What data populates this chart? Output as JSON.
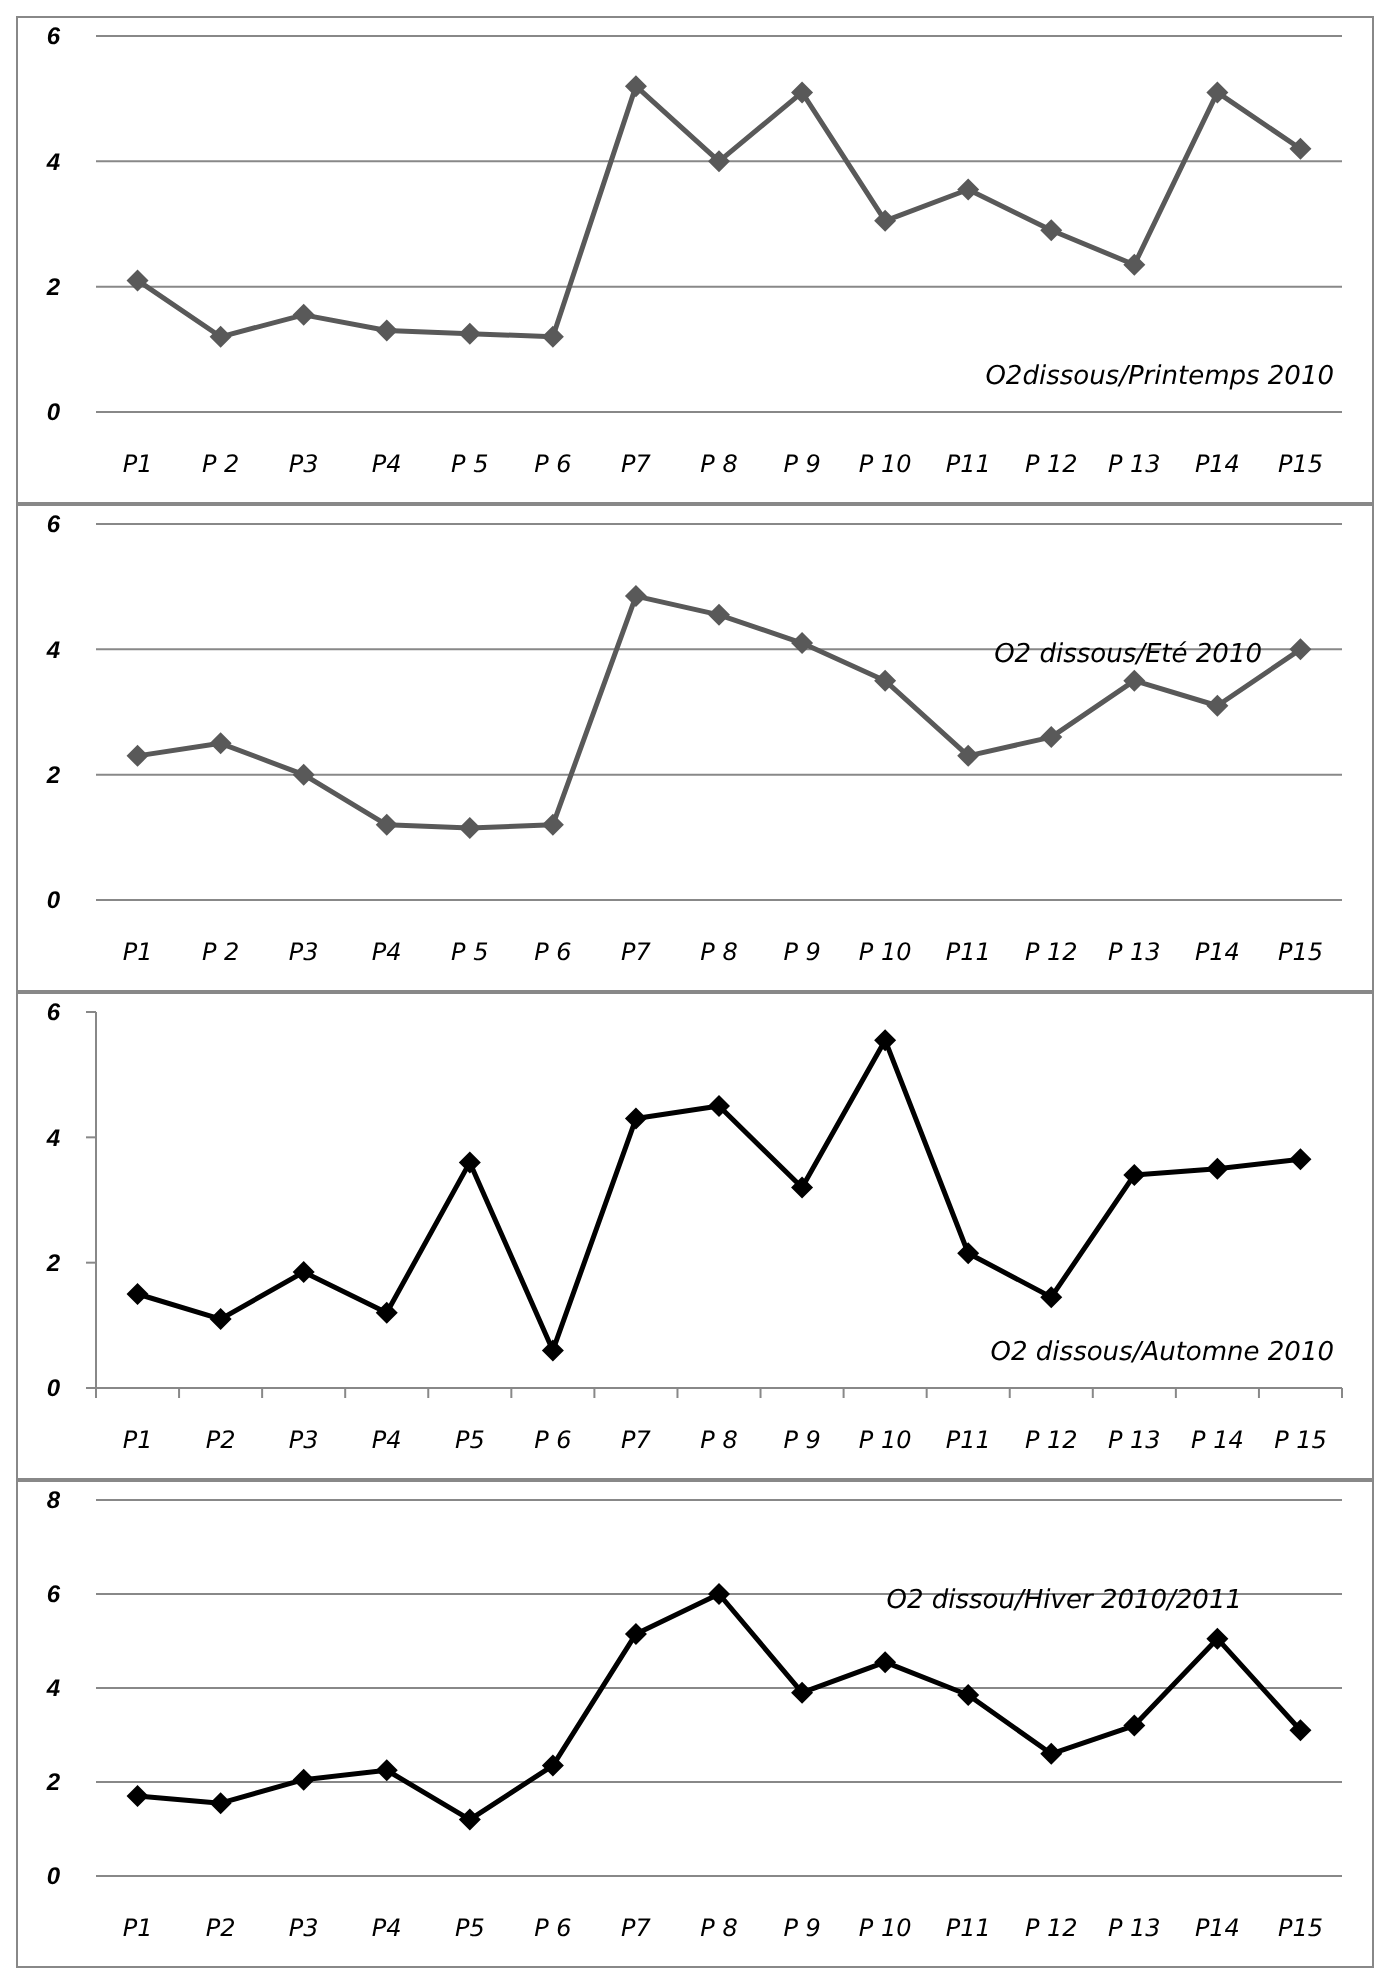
{
  "chart_data": [
    {
      "type": "line",
      "title": "O2dissous/Printemps 2010",
      "categories": [
        "P1",
        "P 2",
        "P3",
        "P4",
        "P 5",
        "P 6",
        "P7",
        "P 8",
        "P 9",
        "P 10",
        "P11",
        "P 12",
        "P 13",
        "P14",
        "P15"
      ],
      "series": [
        {
          "color": "#595959",
          "values": [
            2.1,
            1.2,
            1.55,
            1.3,
            1.25,
            1.2,
            5.2,
            4.0,
            5.1,
            3.05,
            3.55,
            2.9,
            2.35,
            5.1,
            4.2
          ]
        }
      ],
      "ylim": [
        0,
        6
      ],
      "yticks": [
        0,
        2,
        4,
        6
      ],
      "grid": "y",
      "marker": "diamond"
    },
    {
      "type": "line",
      "title": "O2 dissous/Eté 2010",
      "categories": [
        "P1",
        "P 2",
        "P3",
        "P4",
        "P 5",
        "P 6",
        "P7",
        "P 8",
        "P 9",
        "P 10",
        "P11",
        "P 12",
        "P 13",
        "P14",
        "P15"
      ],
      "series": [
        {
          "color": "#595959",
          "values": [
            2.3,
            2.5,
            2.0,
            1.2,
            1.15,
            1.2,
            4.85,
            4.55,
            4.1,
            3.5,
            2.3,
            2.6,
            3.5,
            3.1,
            4.0
          ]
        }
      ],
      "ylim": [
        0,
        6
      ],
      "yticks": [
        0,
        2,
        4,
        6
      ],
      "grid": "y",
      "marker": "diamond"
    },
    {
      "type": "line",
      "title": "O2 dissous/Automne 2010",
      "categories": [
        "P1",
        "P2",
        "P3",
        "P4",
        "P5",
        "P 6",
        "P7",
        "P 8",
        "P 9",
        "P 10",
        "P11",
        "P 12",
        "P 13",
        "P 14",
        "P 15"
      ],
      "series": [
        {
          "color": "#000000",
          "values": [
            1.5,
            1.1,
            1.85,
            1.2,
            3.6,
            0.6,
            4.3,
            4.5,
            3.2,
            5.55,
            2.15,
            1.45,
            3.4,
            3.5,
            3.65
          ]
        }
      ],
      "ylim": [
        0,
        6
      ],
      "yticks": [
        0,
        2,
        4,
        6
      ],
      "grid": false,
      "marker": "diamond"
    },
    {
      "type": "line",
      "title": "O2 dissou/Hiver 2010/2011",
      "categories": [
        "P1",
        "P2",
        "P3",
        "P4",
        "P5",
        "P 6",
        "P7",
        "P 8",
        "P 9",
        "P 10",
        "P11",
        "P 12",
        "P 13",
        "P14",
        "P15"
      ],
      "series": [
        {
          "color": "#000000",
          "values": [
            1.7,
            1.55,
            2.05,
            2.25,
            1.2,
            2.35,
            5.15,
            6.0,
            3.9,
            4.55,
            3.85,
            2.6,
            3.2,
            5.05,
            3.1
          ]
        }
      ],
      "ylim": [
        0,
        8
      ],
      "yticks": [
        0,
        2,
        4,
        6,
        8
      ],
      "grid": "y",
      "marker": "diamond"
    }
  ]
}
